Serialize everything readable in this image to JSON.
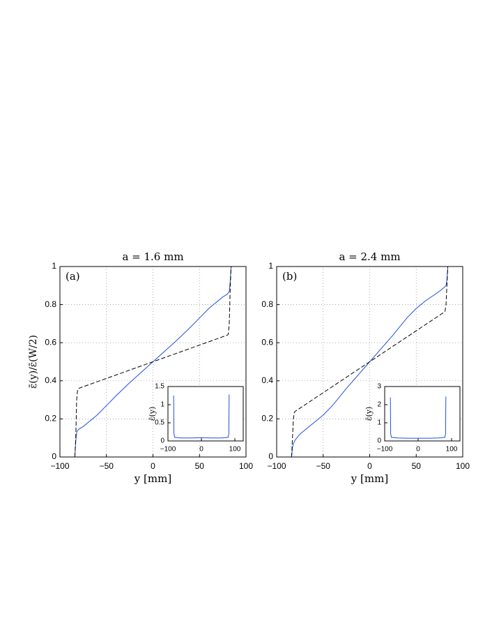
{
  "chart_data": [
    {
      "type": "line",
      "title": "a = 1.6 mm",
      "panel_label": "(a)",
      "xlabel": "y [mm]",
      "ylabel": "ε̄(y)/ε̄(W/2)",
      "xlim": [
        -100,
        100
      ],
      "ylim": [
        0,
        1
      ],
      "xticks": [
        {
          "value": -100,
          "label": "−100"
        },
        {
          "value": -50,
          "label": "−50"
        },
        0,
        50,
        100
      ],
      "yticks": [
        0,
        0.2,
        0.4,
        0.6,
        0.8,
        1
      ],
      "grid": true,
      "series": [
        {
          "color": "#1f4fe0",
          "style": "solid",
          "x": [
            -84,
            -83,
            -82,
            -80,
            -75,
            -60,
            -50,
            -40,
            -25,
            0,
            25,
            40,
            50,
            60,
            75,
            80,
            82,
            83,
            84
          ],
          "values": [
            0,
            0.08,
            0.13,
            0.145,
            0.16,
            0.22,
            0.27,
            0.32,
            0.39,
            0.5,
            0.61,
            0.68,
            0.73,
            0.78,
            0.84,
            0.855,
            0.87,
            0.92,
            1.0
          ]
        },
        {
          "color": "#000000",
          "style": "dashed",
          "x": [
            -84,
            -83,
            -82,
            -81,
            -80,
            0,
            80,
            81,
            82,
            83,
            84
          ],
          "values": [
            0,
            0.1,
            0.3,
            0.355,
            0.36,
            0.5,
            0.64,
            0.645,
            0.7,
            0.88,
            1.0
          ]
        }
      ]
    },
    {
      "type": "line",
      "ylabel": "ε̄(y)",
      "xlim": [
        -100,
        125
      ],
      "ylim": [
        0,
        1.5
      ],
      "xticks": [
        {
          "value": -100,
          "label": "−100"
        },
        0,
        100
      ],
      "yticks": [
        0,
        0.5,
        1,
        1.5
      ],
      "grid": false,
      "series": [
        {
          "color": "#1f4fe0",
          "style": "solid",
          "x": [
            -83,
            -82,
            -80,
            -60,
            -30,
            0,
            30,
            60,
            80,
            82,
            83
          ],
          "values": [
            1.25,
            0.2,
            0.1,
            0.08,
            0.08,
            0.09,
            0.08,
            0.08,
            0.1,
            0.2,
            1.28
          ]
        }
      ]
    },
    {
      "type": "line",
      "title": "a = 2.4 mm",
      "panel_label": "(b)",
      "xlabel": "y [mm]",
      "xlim": [
        -100,
        100
      ],
      "ylim": [
        0,
        1
      ],
      "xticks": [
        {
          "value": -100,
          "label": "−100"
        },
        {
          "value": -50,
          "label": "−50"
        },
        0,
        50,
        100
      ],
      "yticks": [
        0,
        0.2,
        0.4,
        0.6,
        0.8,
        1
      ],
      "grid": true,
      "series": [
        {
          "color": "#1f4fe0",
          "style": "solid",
          "x": [
            -84,
            -83,
            -82,
            -80,
            -75,
            -60,
            -50,
            -40,
            -25,
            0,
            25,
            40,
            50,
            60,
            75,
            80,
            82,
            83,
            84
          ],
          "values": [
            0,
            0.05,
            0.07,
            0.09,
            0.12,
            0.18,
            0.22,
            0.27,
            0.36,
            0.5,
            0.64,
            0.73,
            0.78,
            0.82,
            0.87,
            0.89,
            0.9,
            0.93,
            1.0
          ]
        },
        {
          "color": "#000000",
          "style": "dashed",
          "x": [
            -84,
            -83,
            -82,
            -81,
            -80,
            0,
            80,
            81,
            82,
            83,
            84
          ],
          "values": [
            0,
            0.1,
            0.2,
            0.235,
            0.24,
            0.5,
            0.76,
            0.765,
            0.8,
            0.9,
            1.0
          ]
        }
      ]
    },
    {
      "type": "line",
      "ylabel": "ε̄(y)",
      "xlim": [
        -100,
        125
      ],
      "ylim": [
        0,
        3
      ],
      "xticks": [
        {
          "value": -100,
          "label": "−100"
        },
        0,
        100
      ],
      "yticks": [
        0,
        1,
        2,
        3
      ],
      "grid": false,
      "series": [
        {
          "color": "#1f4fe0",
          "style": "solid",
          "x": [
            -83,
            -82,
            -80,
            -60,
            -30,
            0,
            30,
            60,
            80,
            82,
            83
          ],
          "values": [
            2.4,
            0.4,
            0.2,
            0.16,
            0.15,
            0.15,
            0.15,
            0.16,
            0.2,
            0.4,
            2.45
          ]
        }
      ]
    }
  ]
}
